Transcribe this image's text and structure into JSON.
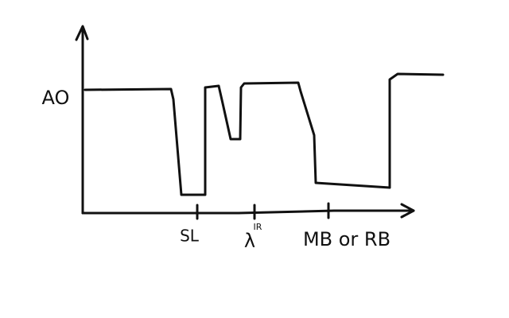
{
  "y_axis": {
    "label": "AO"
  },
  "x_axis": {
    "ticks": [
      {
        "label": "SL"
      },
      {
        "label": "λ",
        "superscript": "IR"
      },
      {
        "label": "MB or RB"
      }
    ]
  }
}
